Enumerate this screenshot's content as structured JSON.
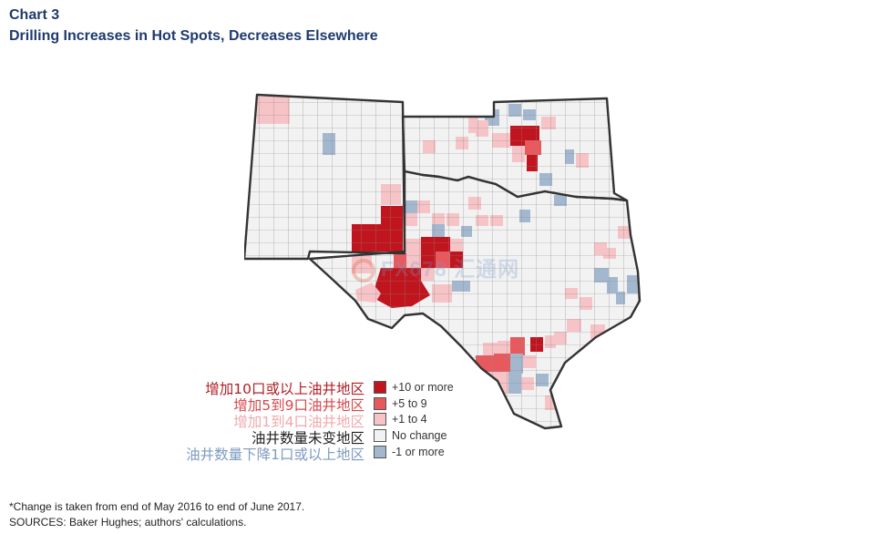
{
  "header": {
    "chart_label": "Chart 3",
    "title": "Drilling Increases in Hot Spots, Decreases Elsewhere"
  },
  "map": {
    "region": "New Mexico, Oklahoma and Texas counties",
    "categories": [
      {
        "key": "plus10",
        "color": "#c0151e"
      },
      {
        "key": "plus5",
        "color": "#e8595e"
      },
      {
        "key": "plus1",
        "color": "#f6c3c6"
      },
      {
        "key": "none",
        "color": "#f2f2f2"
      },
      {
        "key": "minus",
        "color": "#a3b7ce"
      }
    ]
  },
  "legend": [
    {
      "label_cn": "增加10口或以上油井地区",
      "label_en": "+10 or more",
      "color": "#c0151e",
      "text_color": "#b01e24"
    },
    {
      "label_cn": "增加5到9口油井地区",
      "label_en": "+5 to 9",
      "color": "#e8595e",
      "text_color": "#d9474b"
    },
    {
      "label_cn": "增加1到4口油井地区",
      "label_en": "+1 to 4",
      "color": "#f6c3c6",
      "text_color": "#f0a9ad"
    },
    {
      "label_cn": "油井数量未变地区",
      "label_en": "No change",
      "color": "#f2f2f2",
      "text_color": "#222222"
    },
    {
      "label_cn": "油井数量下降1口或以上地区",
      "label_en": "-1 or more",
      "color": "#a3b7ce",
      "text_color": "#7e9bbf"
    }
  ],
  "watermark": "FX678 汇通网",
  "footnotes": {
    "note": "*Change is taken from end of May 2016 to end of June 2017.",
    "sources": "SOURCES: Baker Hughes; authors' calculations."
  }
}
